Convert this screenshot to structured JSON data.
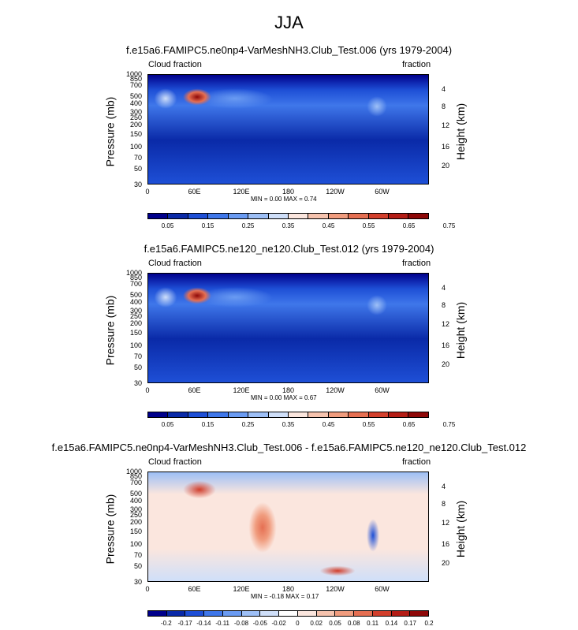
{
  "title": "JJA",
  "panels": [
    {
      "title": "f.e15a6.FAMIPC5.ne0np4-VarMeshNH3.Club_Test.006 (yrs 1979-2004)",
      "left_label": "Cloud fraction",
      "right_label": "fraction",
      "minmax": "MIN =   0.00  MAX =   0.74",
      "colorbar_ticks": [
        "0.05",
        "0.15",
        "0.25",
        "0.35",
        "0.45",
        "0.55",
        "0.65",
        "0.75"
      ],
      "colors": [
        "#00008b",
        "#0a2aa8",
        "#1e4fd6",
        "#3f77ea",
        "#6a9bf2",
        "#9dbff6",
        "#cfdff9",
        "#fbe6de",
        "#f6c3ae",
        "#f09c7e",
        "#e56f52",
        "#d23f2c",
        "#b41d16",
        "#8e0808"
      ]
    },
    {
      "title": "f.e15a6.FAMIPC5.ne120_ne120.Club_Test.012 (yrs 1979-2004)",
      "left_label": "Cloud fraction",
      "right_label": "fraction",
      "minmax": "MIN =   0.00  MAX =   0.67",
      "colorbar_ticks": [
        "0.05",
        "0.15",
        "0.25",
        "0.35",
        "0.45",
        "0.55",
        "0.65",
        "0.75"
      ],
      "colors": [
        "#00008b",
        "#0a2aa8",
        "#1e4fd6",
        "#3f77ea",
        "#6a9bf2",
        "#9dbff6",
        "#cfdff9",
        "#fbe6de",
        "#f6c3ae",
        "#f09c7e",
        "#e56f52",
        "#d23f2c",
        "#b41d16",
        "#8e0808"
      ]
    },
    {
      "title": "f.e15a6.FAMIPC5.ne0np4-VarMeshNH3.Club_Test.006 - f.e15a6.FAMIPC5.ne120_ne120.Club_Test.012",
      "left_label": "Cloud fraction",
      "right_label": "fraction",
      "minmax": "MIN =  -0.18  MAX =   0.17",
      "colorbar_ticks": [
        "-0.2",
        "-0.17",
        "-0.14",
        "-0.11",
        "-0.08",
        "-0.05",
        "-0.02",
        "0",
        "0.02",
        "0.05",
        "0.08",
        "0.11",
        "0.14",
        "0.17",
        "0.2"
      ],
      "colors": [
        "#00008b",
        "#0a2aa8",
        "#1e4fd6",
        "#3f77ea",
        "#6a9bf2",
        "#9dbff6",
        "#cfdff9",
        "#ffffff",
        "#fbe6de",
        "#f6c3ae",
        "#f09c7e",
        "#e56f52",
        "#d23f2c",
        "#b41d16",
        "#8e0808"
      ]
    }
  ],
  "chart_data": {
    "type": "heatmap",
    "xlabel": "",
    "ylabel": "Pressure (mb)",
    "ylabel_right": "Height (km)",
    "x_ticks": [
      "0",
      "60E",
      "120E",
      "180",
      "120W",
      "60W"
    ],
    "x_values": [
      0,
      60,
      120,
      180,
      240,
      300
    ],
    "xlim": [
      0,
      360
    ],
    "y_ticks": [
      "1000",
      "850",
      "700",
      "500",
      "400",
      "300",
      "250",
      "200",
      "150",
      "100",
      "70",
      "50",
      "30"
    ],
    "y_values": [
      1000,
      850,
      700,
      500,
      400,
      300,
      250,
      200,
      150,
      100,
      70,
      50,
      30
    ],
    "ylim": [
      1000,
      30
    ],
    "y_scale": "log",
    "y_right_ticks": [
      "20",
      "16",
      "12",
      "8",
      "4"
    ],
    "y_right_values": [
      20,
      16,
      12,
      8,
      4
    ],
    "series": [
      {
        "min": 0.0,
        "max": 0.74
      },
      {
        "min": 0.0,
        "max": 0.67
      },
      {
        "min": -0.18,
        "max": 0.17
      }
    ]
  }
}
